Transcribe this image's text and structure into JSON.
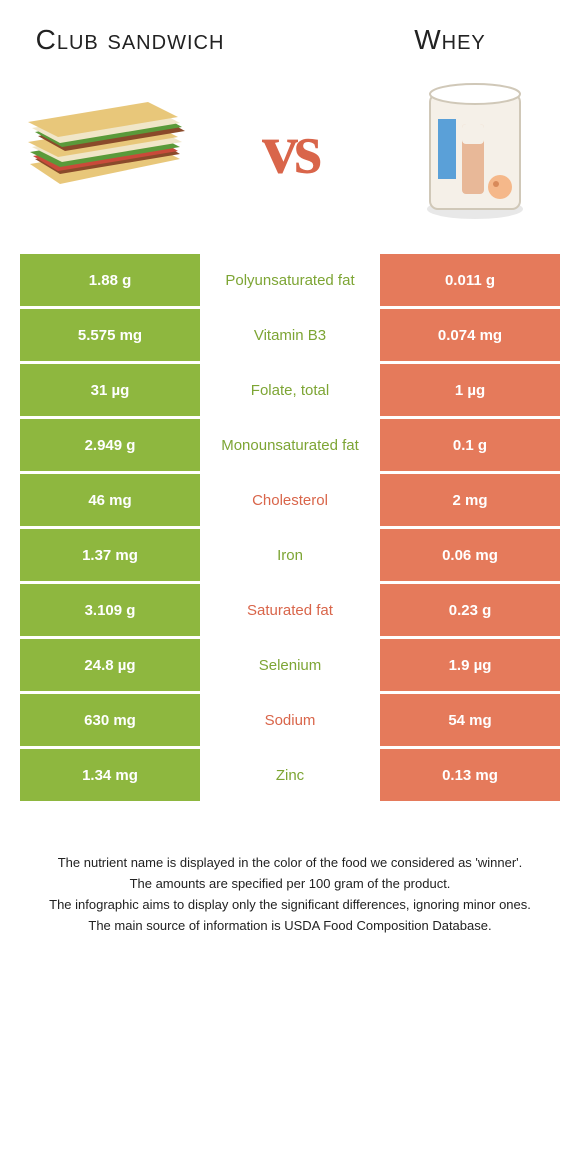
{
  "food1": {
    "name": "Club sandwich",
    "color": "#8eb73f"
  },
  "food2": {
    "name": "Whey",
    "color": "#e57a5b"
  },
  "vs_label": "vs",
  "label_colors": {
    "food1_text": "#7da534",
    "food2_text": "#d9654a"
  },
  "rows": [
    {
      "left": "1.88 g",
      "label": "Polyunsaturated fat",
      "right": "0.011 g",
      "winner": "food1"
    },
    {
      "left": "5.575 mg",
      "label": "Vitamin B3",
      "right": "0.074 mg",
      "winner": "food1"
    },
    {
      "left": "31 µg",
      "label": "Folate, total",
      "right": "1 µg",
      "winner": "food1"
    },
    {
      "left": "2.949 g",
      "label": "Monounsaturated fat",
      "right": "0.1 g",
      "winner": "food1"
    },
    {
      "left": "46 mg",
      "label": "Cholesterol",
      "right": "2 mg",
      "winner": "food2"
    },
    {
      "left": "1.37 mg",
      "label": "Iron",
      "right": "0.06 mg",
      "winner": "food1"
    },
    {
      "left": "3.109 g",
      "label": "Saturated fat",
      "right": "0.23 g",
      "winner": "food2"
    },
    {
      "left": "24.8 µg",
      "label": "Selenium",
      "right": "1.9 µg",
      "winner": "food1"
    },
    {
      "left": "630 mg",
      "label": "Sodium",
      "right": "54 mg",
      "winner": "food2"
    },
    {
      "left": "1.34 mg",
      "label": "Zinc",
      "right": "0.13 mg",
      "winner": "food1"
    }
  ],
  "footer": [
    "The nutrient name is displayed in the color of the food we considered as 'winner'.",
    "The amounts are specified per 100 gram of the product.",
    "The infographic aims to display only the significant differences, ignoring minor ones.",
    "The main source of information is USDA Food Composition Database."
  ]
}
